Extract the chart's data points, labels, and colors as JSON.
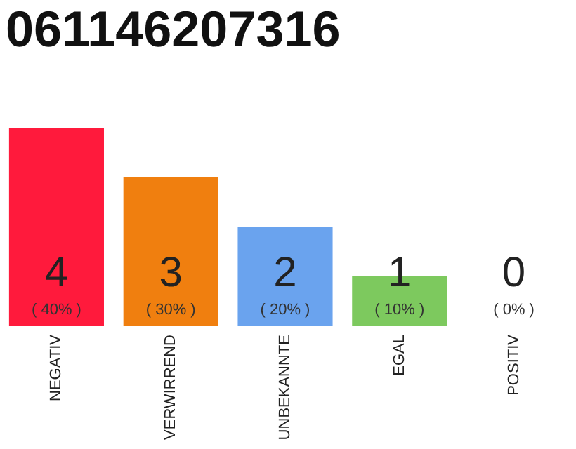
{
  "chart_data": {
    "type": "bar",
    "title": "061146207316",
    "categories": [
      "NEGATIV",
      "VERWIRREND",
      "UNBEKANNTE",
      "EGAL",
      "POSITIV"
    ],
    "values": [
      4,
      3,
      2,
      1,
      0
    ],
    "colors": [
      "#ff1a3c",
      "#f07f0f",
      "#6aa3ee",
      "#7dc95e",
      "#e0e0e0"
    ],
    "data_labels": true,
    "annotations": [
      {
        "text": "( 40% )",
        "x": "NEGATIV",
        "y": 0
      },
      {
        "text": "( 30% )",
        "x": "VERWIRREND",
        "y": 0
      },
      {
        "text": "( 20% )",
        "x": "UNBEKANNTE",
        "y": 0
      },
      {
        "text": "( 10% )",
        "x": "EGAL",
        "y": 0
      },
      {
        "text": "( 0% )",
        "x": "POSITIV",
        "y": 0
      }
    ]
  }
}
